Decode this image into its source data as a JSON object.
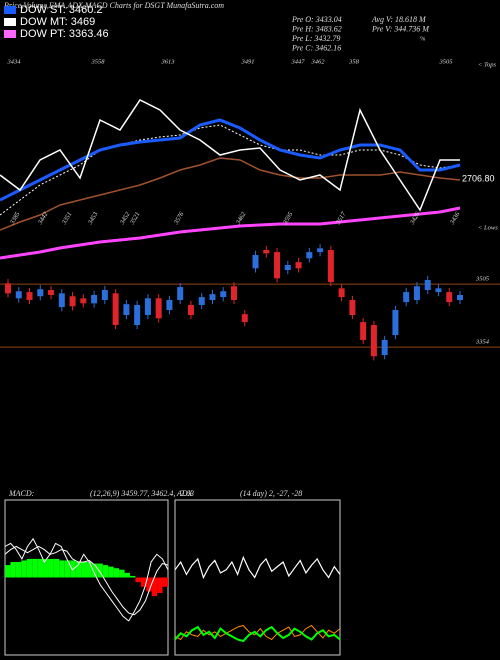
{
  "header": {
    "title": "Price,Volume,EMA,ADX,MACD Charts for DSGT MunafaSutra.com",
    "legend": [
      {
        "label": "DOW ST: 3460.2",
        "color": "#1a5cff"
      },
      {
        "label": "DOW MT: 3469",
        "color": "#ffffff"
      },
      {
        "label": "DOW PT: 3363.46",
        "color": "#ff66ff"
      }
    ],
    "info": [
      "Pre O: 3433.04",
      "Pre H: 3483.62",
      "Pre L: 3432.79",
      "Pre C: 3462.16"
    ],
    "info2": [
      "Avg V: 18.618 M",
      "Pre V: 344.736 M",
      "%"
    ]
  },
  "chart_data": [
    {
      "type": "line",
      "ylim": [
        0,
        220
      ],
      "level_label": "2706.80",
      "tops_label": "< Tops",
      "lows_label": "< Lows",
      "top_labels": [
        "3434",
        "3558",
        "3613",
        "3491",
        "3447",
        "3462",
        "358",
        "3505"
      ],
      "low_labels": [
        "3385",
        "3442",
        "3351",
        "3453",
        "3452",
        "3521",
        "3576",
        "3462",
        "3595",
        "3517",
        "3426",
        "3436"
      ],
      "series": [
        {
          "color": "#a0522d",
          "width": 1.5,
          "values": [
            40,
            48,
            55,
            65,
            70,
            75,
            80,
            85,
            92,
            100,
            105,
            112,
            110,
            100,
            95,
            92,
            92,
            95,
            95,
            95,
            98,
            95,
            92,
            90
          ]
        },
        {
          "color": "#ff44ff",
          "width": 3,
          "values": [
            12,
            15,
            18,
            22,
            25,
            28,
            30,
            32,
            35,
            38,
            40,
            42,
            44,
            45,
            46,
            46,
            46,
            48,
            50,
            52,
            54,
            56,
            58,
            62
          ]
        },
        {
          "color": "#ffffff",
          "width": 1,
          "dashed": true,
          "values": [
            55,
            70,
            85,
            95,
            105,
            120,
            125,
            130,
            133,
            135,
            142,
            145,
            135,
            125,
            120,
            120,
            115,
            115,
            120,
            120,
            115,
            105,
            102,
            105
          ]
        },
        {
          "color": "#1a5cff",
          "width": 3,
          "values": [
            70,
            80,
            90,
            100,
            110,
            120,
            125,
            128,
            130,
            132,
            145,
            150,
            142,
            130,
            120,
            115,
            112,
            120,
            125,
            125,
            120,
            100,
            100,
            105
          ]
        },
        {
          "color": "#ffffff",
          "width": 1.5,
          "values": [
            95,
            80,
            110,
            120,
            92,
            150,
            140,
            170,
            160,
            140,
            130,
            115,
            120,
            122,
            100,
            90,
            95,
            80,
            160,
            120,
            90,
            60,
            110,
            110
          ]
        }
      ]
    },
    {
      "type": "candlestick",
      "ylim": [
        3275,
        3611
      ],
      "up_color": "#2a6fdb",
      "down_color": "#e0242b",
      "level_color": "#8b4513",
      "levels": [
        3505,
        3354
      ],
      "open": [
        3507,
        3471,
        3486,
        3476,
        3491,
        3450,
        3476,
        3471,
        3459,
        3467,
        3483,
        3431,
        3407,
        3431,
        3471,
        3443,
        3467,
        3455,
        3455,
        3467,
        3474,
        3500,
        3433,
        3543,
        3587,
        3582,
        3539,
        3558,
        3567,
        3582,
        3587,
        3495,
        3467,
        3414,
        3407,
        3335,
        3383,
        3462,
        3467,
        3491,
        3486,
        3486,
        3467
      ],
      "high": [
        3517,
        3498,
        3496,
        3503,
        3501,
        3493,
        3486,
        3481,
        3489,
        3501,
        3493,
        3467,
        3465,
        3481,
        3481,
        3477,
        3508,
        3465,
        3484,
        3491,
        3498,
        3510,
        3443,
        3585,
        3597,
        3592,
        3561,
        3568,
        3592,
        3601,
        3597,
        3505,
        3477,
        3424,
        3417,
        3381,
        3453,
        3496,
        3510,
        3525,
        3505,
        3496,
        3489
      ],
      "low": [
        3473,
        3461,
        3457,
        3466,
        3469,
        3440,
        3442,
        3449,
        3449,
        3457,
        3397,
        3421,
        3397,
        3421,
        3413,
        3433,
        3457,
        3421,
        3445,
        3457,
        3464,
        3457,
        3404,
        3533,
        3569,
        3509,
        3529,
        3533,
        3557,
        3572,
        3500,
        3464,
        3421,
        3361,
        3322,
        3325,
        3373,
        3452,
        3457,
        3481,
        3476,
        3452,
        3457
      ],
      "close": [
        3483,
        3488,
        3467,
        3493,
        3479,
        3483,
        3452,
        3459,
        3479,
        3491,
        3407,
        3457,
        3455,
        3471,
        3423,
        3467,
        3498,
        3431,
        3474,
        3481,
        3488,
        3467,
        3414,
        3575,
        3579,
        3519,
        3551,
        3543,
        3582,
        3591,
        3510,
        3474,
        3431,
        3371,
        3332,
        3371,
        3443,
        3486,
        3500,
        3515,
        3495,
        3462,
        3479
      ]
    },
    {
      "type": "macd",
      "title": "MACD:",
      "subtitle": "(12,26,9) 3459.77, 3462.4, -2.63",
      "ylim": [
        -50,
        50
      ],
      "pos_color": "#00ff00",
      "neg_color": "#ff0000",
      "histogram": [
        8,
        10,
        10,
        11,
        12,
        12,
        12,
        12,
        12,
        12,
        11,
        11,
        11,
        10,
        10,
        10,
        9,
        9,
        8,
        7,
        6,
        5,
        3,
        1,
        -3,
        -6,
        -9,
        -12,
        -10,
        -6
      ],
      "series": [
        {
          "color": "#ffffff",
          "values": [
            20,
            22,
            18,
            12,
            20,
            25,
            18,
            10,
            15,
            22,
            20,
            12,
            5,
            8,
            15,
            10,
            2,
            -5,
            -10,
            -15,
            -20,
            -25,
            -28,
            -22,
            -15,
            -5,
            10,
            15,
            12,
            5
          ]
        },
        {
          "color": "#ffffff",
          "values": [
            15,
            18,
            20,
            18,
            16,
            18,
            20,
            18,
            15,
            16,
            18,
            17,
            12,
            10,
            10,
            11,
            8,
            3,
            -3,
            -9,
            -14,
            -19,
            -23,
            -24,
            -21,
            -15,
            -5,
            4,
            9,
            8
          ]
        }
      ]
    },
    {
      "type": "line",
      "title": "ADX",
      "subtitle": "(14 day) 2, -27, -28",
      "ylim": [
        0,
        100
      ],
      "series": [
        {
          "color": "#ffffff",
          "width": 1.2,
          "values": [
            55,
            60,
            52,
            58,
            62,
            50,
            57,
            61,
            53,
            55,
            60,
            52,
            63,
            55,
            50,
            58,
            62,
            54,
            57,
            60,
            51,
            56,
            61,
            53,
            58,
            62,
            55,
            50,
            57,
            52
          ]
        },
        {
          "color": "#ff8c00",
          "width": 1,
          "values": [
            12,
            10,
            15,
            13,
            12,
            16,
            13,
            15,
            12,
            14,
            16,
            18,
            19,
            15,
            13,
            17,
            12,
            10,
            14,
            16,
            18,
            12,
            13,
            17,
            19,
            15,
            11,
            16,
            14,
            17
          ]
        },
        {
          "color": "#00ff00",
          "width": 2,
          "values": [
            10,
            14,
            12,
            16,
            18,
            13,
            15,
            11,
            17,
            14,
            12,
            10,
            9,
            13,
            15,
            12,
            16,
            18,
            14,
            11,
            13,
            17,
            15,
            12,
            10,
            14,
            16,
            12,
            13,
            10
          ]
        }
      ]
    }
  ]
}
